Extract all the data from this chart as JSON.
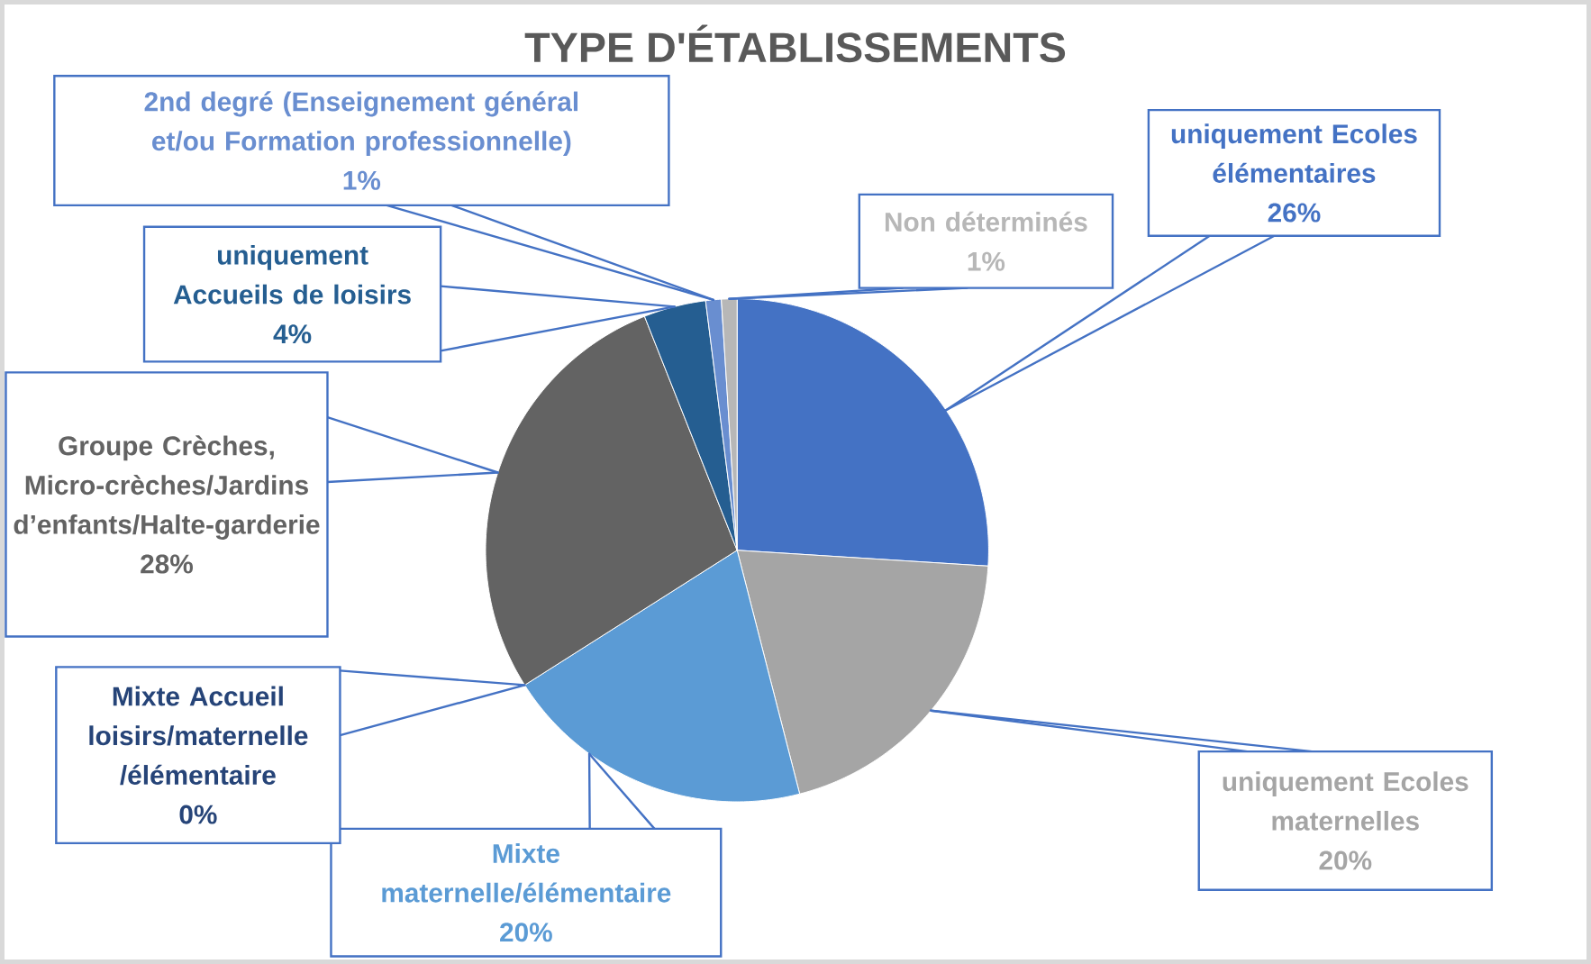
{
  "chart_data": {
    "type": "pie",
    "title": "TYPE D'ÉTABLISSEMENTS",
    "categories": [
      "uniquement Ecoles élémentaires",
      "uniquement Ecoles maternelles",
      "Mixte maternelle/élémentaire",
      "Mixte Accueil loisirs/maternelle /élémentaire",
      "Groupe Crèches, Micro-crèches/Jardins d’enfants/Halte-garderie",
      "uniquement Accueils de loisirs",
      "2nd degré (Enseignement général et/ou Formation professionnelle)",
      "Non déterminés"
    ],
    "values": [
      26,
      20,
      20,
      0,
      28,
      4,
      1,
      1
    ],
    "colors": [
      "#4472c4",
      "#a5a5a5",
      "#5b9bd5",
      "#264478",
      "#636363",
      "#255e91",
      "#698ed0",
      "#b7b7b7"
    ],
    "value_labels": [
      "26%",
      "20%",
      "20%",
      "0%",
      "28%",
      "4%",
      "1%",
      "1%"
    ]
  }
}
